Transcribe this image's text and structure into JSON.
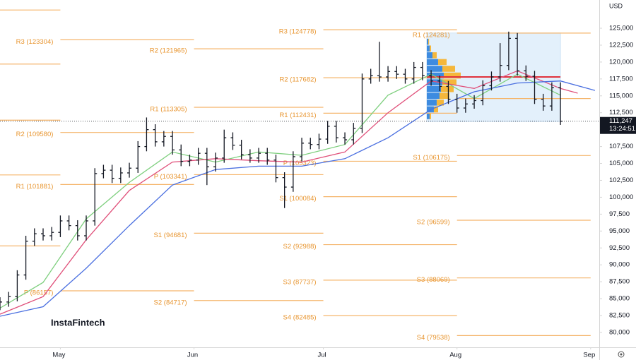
{
  "chart_data": {
    "type": "ohlc",
    "currency": "USD",
    "watermark": "InstaFintech",
    "xlim": [
      0,
      139
    ],
    "xticks": [
      {
        "value": 14,
        "label": "May"
      },
      {
        "value": 45,
        "label": "Jun"
      },
      {
        "value": 75,
        "label": "Jul"
      },
      {
        "value": 106,
        "label": "Aug"
      },
      {
        "value": 137,
        "label": "Sep"
      }
    ],
    "ylim": [
      77800,
      129180
    ],
    "yticks": [
      {
        "value": 80000,
        "label": "80,000"
      },
      {
        "value": 82500,
        "label": "82,500"
      },
      {
        "value": 85000,
        "label": "85,000"
      },
      {
        "value": 87500,
        "label": "87,500"
      },
      {
        "value": 90000,
        "label": "90,000"
      },
      {
        "value": 92500,
        "label": "92,500"
      },
      {
        "value": 95000,
        "label": "95,000"
      },
      {
        "value": 97500,
        "label": "97,500"
      },
      {
        "value": 100000,
        "label": "100,000"
      },
      {
        "value": 102500,
        "label": "102,500"
      },
      {
        "value": 105000,
        "label": "105,000"
      },
      {
        "value": 107500,
        "label": "107,500"
      },
      {
        "value": 110000,
        "label": "110,000"
      },
      {
        "value": 112500,
        "label": "112,500"
      },
      {
        "value": 115000,
        "label": "115,000"
      },
      {
        "value": 117500,
        "label": "117,500"
      },
      {
        "value": 120000,
        "label": "120,000"
      },
      {
        "value": 122500,
        "label": "122,500"
      },
      {
        "value": 125000,
        "label": "125,000"
      }
    ],
    "color": "#131722",
    "ohlc": {
      "x": [
        0,
        2,
        4,
        6,
        8,
        10,
        12,
        14,
        16,
        18,
        20,
        22,
        24,
        26,
        28,
        30,
        32,
        34,
        36,
        38,
        40,
        42,
        44,
        46,
        48,
        50,
        52,
        54,
        56,
        58,
        60,
        62,
        64,
        66,
        68,
        70,
        72,
        74,
        76,
        78,
        80,
        82,
        84,
        86,
        88,
        90,
        92,
        94,
        96,
        98,
        100,
        102,
        104,
        106,
        108,
        110,
        112,
        114,
        116,
        118,
        120,
        122,
        124,
        126,
        128,
        130
      ],
      "open": [
        84000,
        84500,
        85300,
        88500,
        93500,
        94600,
        94300,
        94800,
        96500,
        95800,
        94300,
        96500,
        103500,
        104000,
        102800,
        103600,
        104300,
        107500,
        110000,
        108200,
        109000,
        107000,
        105300,
        105500,
        106500,
        104500,
        105800,
        108800,
        107700,
        106300,
        105800,
        106500,
        105500,
        102900,
        101500,
        106000,
        108000,
        107800,
        108600,
        110500,
        108800,
        108500,
        110200,
        117500,
        118000,
        117800,
        118600,
        118200,
        117500,
        119200,
        118000,
        117200,
        116400,
        114500,
        113200,
        113800,
        114300,
        116500,
        117800,
        119500,
        123500,
        118700,
        117900,
        114500,
        113500,
        116200
      ],
      "high": [
        85200,
        86000,
        89200,
        94300,
        95400,
        95400,
        95600,
        97300,
        97300,
        96600,
        97300,
        104300,
        104800,
        104800,
        104400,
        105100,
        108300,
        111800,
        110800,
        109800,
        109800,
        107800,
        106300,
        107300,
        107300,
        106600,
        110000,
        109600,
        108500,
        107100,
        107300,
        107300,
        106300,
        103700,
        106800,
        108800,
        108800,
        109400,
        111300,
        111300,
        109600,
        111000,
        118300,
        119000,
        123000,
        119400,
        119400,
        119000,
        120000,
        120000,
        118800,
        118000,
        117200,
        115300,
        114600,
        115100,
        117300,
        118600,
        122800,
        124500,
        124300,
        119500,
        118700,
        115300,
        117000,
        117000
      ],
      "low": [
        83300,
        83800,
        84600,
        87800,
        92800,
        93600,
        93600,
        94100,
        95100,
        93600,
        93600,
        95800,
        102800,
        102100,
        102100,
        102900,
        103600,
        106800,
        107500,
        107500,
        106300,
        104600,
        104600,
        104800,
        101800,
        103800,
        105100,
        107000,
        105600,
        105100,
        105100,
        104800,
        102200,
        98400,
        100800,
        105300,
        107100,
        107100,
        107900,
        108100,
        107800,
        107800,
        109500,
        116800,
        117100,
        117100,
        117500,
        116800,
        116800,
        117300,
        116500,
        115700,
        113800,
        112500,
        112500,
        113100,
        113600,
        115800,
        117100,
        118800,
        118000,
        117200,
        113800,
        112800,
        112800,
        110700
      ],
      "close": [
        84500,
        85300,
        88500,
        93500,
        94600,
        94300,
        94800,
        96500,
        95800,
        94300,
        96500,
        103500,
        104000,
        102800,
        103600,
        104300,
        107500,
        110000,
        108200,
        109000,
        107000,
        105300,
        105500,
        106500,
        104500,
        105800,
        108800,
        107700,
        106300,
        105800,
        106500,
        105500,
        102900,
        101500,
        106000,
        108000,
        107800,
        108600,
        110500,
        108800,
        108500,
        110200,
        117500,
        118000,
        117800,
        118600,
        118200,
        117500,
        119200,
        118000,
        117200,
        116400,
        114500,
        113200,
        113800,
        114300,
        116500,
        117800,
        119500,
        123500,
        118700,
        117900,
        114500,
        113500,
        116200,
        111247
      ]
    },
    "series": [
      {
        "color": "#7ecf7e",
        "x": [
          0,
          10,
          20,
          30,
          40,
          50,
          60,
          70,
          80,
          90,
          100,
          110,
          120,
          130
        ],
        "values": [
          83600,
          87400,
          96800,
          102200,
          106700,
          105200,
          106700,
          106200,
          107800,
          115100,
          118200,
          114600,
          118200,
          115100
        ]
      },
      {
        "color": "#e0507a",
        "x": [
          0,
          10,
          20,
          30,
          40,
          50,
          60,
          70,
          80,
          90,
          100,
          110,
          120,
          130,
          134
        ],
        "values": [
          82700,
          85300,
          93700,
          101000,
          105200,
          105700,
          105400,
          105200,
          106700,
          112500,
          117200,
          116100,
          118700,
          116100,
          115400
        ]
      },
      {
        "color": "#4a6fe0",
        "x": [
          0,
          10,
          20,
          30,
          40,
          50,
          60,
          70,
          80,
          90,
          100,
          110,
          120,
          130,
          138
        ],
        "values": [
          82400,
          83800,
          89500,
          95800,
          101800,
          104100,
          104600,
          104600,
          105700,
          108800,
          113000,
          115600,
          116900,
          117200,
          115800
        ]
      }
    ],
    "pivot_periods": [
      {
        "x0": 0,
        "x1": 14,
        "levels": [
          {
            "value": 127700
          },
          {
            "value": 119700
          },
          {
            "value": 111400
          },
          {
            "value": 103300
          },
          {
            "value": 92800
          }
        ]
      },
      {
        "x0": 14,
        "x1": 45,
        "levels": [
          {
            "label": "R3 (123304)",
            "value": 123304
          },
          {
            "label": "R2 (109580)",
            "value": 109580
          },
          {
            "label": "R1 (101881)",
            "value": 101881
          },
          {
            "label": "P (86157)",
            "value": 86157
          }
        ]
      },
      {
        "x0": 45,
        "x1": 75,
        "levels": [
          {
            "label": "R2 (121965)",
            "value": 121965
          },
          {
            "label": "R1 (113305)",
            "value": 113305
          },
          {
            "label": "P (103341)",
            "value": 103341
          },
          {
            "label": "S1 (94681)",
            "value": 94681
          },
          {
            "label": "S2 (84717)",
            "value": 84717
          }
        ]
      },
      {
        "x0": 75,
        "x1": 106,
        "levels": [
          {
            "label": "R3 (124778)",
            "value": 124778
          },
          {
            "label": "R2 (117682)",
            "value": 117682
          },
          {
            "label": "R1 (112431)",
            "value": 112431
          },
          {
            "label": "P (105323)",
            "value": 105323
          },
          {
            "label": "S1 (100084)",
            "value": 100084
          },
          {
            "label": "S2 (92988)",
            "value": 92988
          },
          {
            "label": "S3 (87737)",
            "value": 87737
          },
          {
            "label": "S4 (82485)",
            "value": 82485
          }
        ]
      },
      {
        "x0": 106,
        "x1": 137,
        "levels": [
          {
            "label": "R1 (124281)",
            "value": 124281
          },
          {
            "value": 114600
          },
          {
            "label": "S1 (106175)",
            "value": 106175
          },
          {
            "label": "S2 (96599)",
            "value": 96599
          },
          {
            "label": "S3 (88069)",
            "value": 88069
          },
          {
            "label": "S4 (79538)",
            "value": 79538
          }
        ]
      }
    ],
    "range_box": {
      "x0": 99,
      "x1": 130,
      "low": 111200,
      "high": 124300,
      "poc": 117800
    },
    "volume_profile": {
      "prices": [
        112000,
        113000,
        114000,
        115000,
        116000,
        117000,
        118000,
        119000,
        120000,
        121000,
        122000,
        123000
      ],
      "blue": [
        10,
        25,
        35,
        45,
        50,
        55,
        60,
        55,
        40,
        20,
        10,
        5
      ],
      "orange": [
        5,
        15,
        25,
        35,
        45,
        50,
        60,
        45,
        30,
        15,
        5,
        3
      ]
    },
    "last_price": {
      "value": 111247,
      "label": "111,247",
      "time": "13:24:51"
    }
  }
}
